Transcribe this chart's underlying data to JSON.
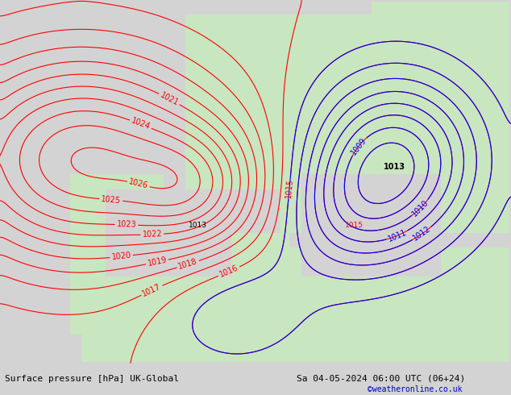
{
  "title_left": "Surface pressure [hPa] UK-Global",
  "title_right": "Sa 04-05-2024 06:00 UTC (06+24)",
  "credit": "©weatheronline.co.uk",
  "bg_color": "#d3d3d3",
  "land_color": "#c8e6c0",
  "sea_color": "#d3d3d3",
  "red_contour_color": "#ff0000",
  "blue_contour_color": "#0000ff",
  "black_contour_color": "#000000",
  "label_fontsize": 7,
  "bottom_bar_color": "#d0d0d0",
  "bottom_text_color": "#000000",
  "credit_color": "#0000cc",
  "figsize": [
    6.34,
    4.9
  ],
  "dpi": 100
}
